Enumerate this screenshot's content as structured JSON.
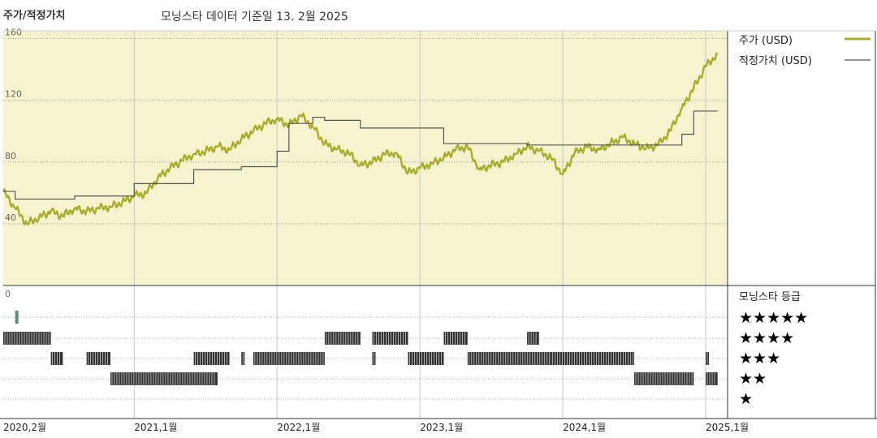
{
  "header": {
    "title": "주가/적정가치",
    "subtitle": "모닝스타 데이터 기준일 13. 2월 2025"
  },
  "legend": {
    "price_label": "주가 (USD)",
    "fair_label": "적정가치 (USD)",
    "rating_title": "모닝스타 등급",
    "stars": [
      "★★★★★",
      "★★★★",
      "★★★",
      "★★",
      "★"
    ]
  },
  "colors": {
    "plot_bg": "#f7f3cf",
    "price_line": "#a9ad2a",
    "fair_line": "#555555",
    "rating_bar": "#333333",
    "rating_five": "#5c8c80"
  },
  "chart_data": [
    {
      "type": "line",
      "ylim": [
        0,
        165
      ],
      "yticks": [
        160,
        120,
        80,
        40
      ],
      "xticks": [
        "2020,2월",
        "2021,1월",
        "2022,1월",
        "2023,1월",
        "2024,1월",
        "2025,1월"
      ],
      "series": [
        {
          "name": "주가 (USD)",
          "points": [
            [
              "2020-02",
              61
            ],
            [
              "2020-03",
              50
            ],
            [
              "2020-04",
              40
            ],
            [
              "2020-05",
              44
            ],
            [
              "2020-06",
              48
            ],
            [
              "2020-07",
              45
            ],
            [
              "2020-08",
              50
            ],
            [
              "2020-09",
              48
            ],
            [
              "2020-10",
              50
            ],
            [
              "2020-11",
              51
            ],
            [
              "2020-12",
              54
            ],
            [
              "2021-01",
              58
            ],
            [
              "2021-02",
              60
            ],
            [
              "2021-03",
              70
            ],
            [
              "2021-04",
              76
            ],
            [
              "2021-05",
              81
            ],
            [
              "2021-06",
              85
            ],
            [
              "2021-07",
              87
            ],
            [
              "2021-08",
              90
            ],
            [
              "2021-09",
              88
            ],
            [
              "2021-10",
              95
            ],
            [
              "2021-11",
              100
            ],
            [
              "2021-12",
              105
            ],
            [
              "2022-01",
              108
            ],
            [
              "2022-02",
              104
            ],
            [
              "2022-03",
              110
            ],
            [
              "2022-04",
              103
            ],
            [
              "2022-05",
              92
            ],
            [
              "2022-06",
              88
            ],
            [
              "2022-07",
              86
            ],
            [
              "2022-08",
              78
            ],
            [
              "2022-09",
              80
            ],
            [
              "2022-10",
              85
            ],
            [
              "2022-11",
              86
            ],
            [
              "2022-12",
              73
            ],
            [
              "2023-01",
              76
            ],
            [
              "2023-02",
              79
            ],
            [
              "2023-03",
              83
            ],
            [
              "2023-04",
              88
            ],
            [
              "2023-05",
              90
            ],
            [
              "2023-06",
              75
            ],
            [
              "2023-07",
              78
            ],
            [
              "2023-08",
              80
            ],
            [
              "2023-09",
              85
            ],
            [
              "2023-10",
              90
            ],
            [
              "2023-11",
              87
            ],
            [
              "2023-12",
              83
            ],
            [
              "2024-01",
              72
            ],
            [
              "2024-02",
              86
            ],
            [
              "2024-03",
              90
            ],
            [
              "2024-04",
              88
            ],
            [
              "2024-05",
              92
            ],
            [
              "2024-06",
              96
            ],
            [
              "2024-07",
              92
            ],
            [
              "2024-08",
              89
            ],
            [
              "2024-09",
              91
            ],
            [
              "2024-10",
              100
            ],
            [
              "2024-11",
              115
            ],
            [
              "2024-12",
              128
            ],
            [
              "2025-01",
              142
            ],
            [
              "2025-02",
              150
            ]
          ]
        },
        {
          "name": "적정가치 (USD)",
          "steps": [
            [
              "2020-02",
              61
            ],
            [
              "2020-03",
              56
            ],
            [
              "2020-07",
              56
            ],
            [
              "2020-08",
              58
            ],
            [
              "2021-01",
              66
            ],
            [
              "2021-06",
              75
            ],
            [
              "2021-10",
              77
            ],
            [
              "2022-01",
              87
            ],
            [
              "2022-02",
              105
            ],
            [
              "2022-04",
              109
            ],
            [
              "2022-05",
              107
            ],
            [
              "2022-08",
              102
            ],
            [
              "2023-03",
              92
            ],
            [
              "2023-10",
              91
            ],
            [
              "2024-03",
              91
            ],
            [
              "2024-10",
              91
            ],
            [
              "2024-11",
              98
            ],
            [
              "2024-12",
              113
            ],
            [
              "2025-02",
              113
            ]
          ]
        }
      ]
    },
    {
      "type": "heatmap",
      "title": "모닝스타 등급",
      "ymin_label": "0",
      "rating_periods": [
        {
          "stars": 5,
          "start": "2020-03",
          "end": "2020-03"
        },
        {
          "stars": 4,
          "start": "2020-02",
          "end": "2020-06"
        },
        {
          "stars": 3,
          "start": "2020-06",
          "end": "2020-07"
        },
        {
          "stars": 3,
          "start": "2020-09",
          "end": "2020-11"
        },
        {
          "stars": 2,
          "start": "2020-11",
          "end": "2021-08"
        },
        {
          "stars": 3,
          "start": "2021-06",
          "end": "2021-09"
        },
        {
          "stars": 3,
          "start": "2021-10",
          "end": "2021-10"
        },
        {
          "stars": 3,
          "start": "2021-11",
          "end": "2022-05"
        },
        {
          "stars": 4,
          "start": "2022-05",
          "end": "2022-08"
        },
        {
          "stars": 3,
          "start": "2022-09",
          "end": "2022-09"
        },
        {
          "stars": 4,
          "start": "2022-09",
          "end": "2022-12"
        },
        {
          "stars": 3,
          "start": "2022-12",
          "end": "2023-03"
        },
        {
          "stars": 4,
          "start": "2023-03",
          "end": "2023-05"
        },
        {
          "stars": 3,
          "start": "2023-05",
          "end": "2023-12"
        },
        {
          "stars": 4,
          "start": "2023-10",
          "end": "2023-11"
        },
        {
          "stars": 3,
          "start": "2023-12",
          "end": "2024-07"
        },
        {
          "stars": 2,
          "start": "2024-07",
          "end": "2024-12"
        },
        {
          "stars": 3,
          "start": "2025-01",
          "end": "2025-01"
        },
        {
          "stars": 2,
          "start": "2025-01",
          "end": "2025-02"
        }
      ]
    }
  ]
}
